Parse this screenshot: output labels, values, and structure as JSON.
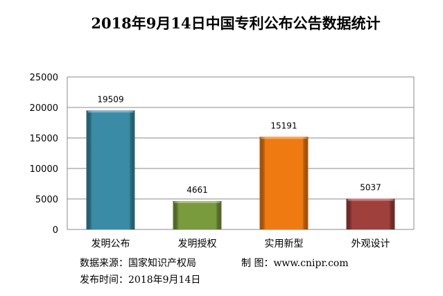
{
  "chart_data": {
    "type": "bar",
    "title": "2018年9月14日中国专利公布公告数据统计",
    "categories": [
      "发明公布",
      "发明授权",
      "实用新型",
      "外观设计"
    ],
    "values": [
      19509,
      4661,
      15191,
      5037
    ],
    "colors": [
      "#3a8ca6",
      "#7a9a3e",
      "#f07a12",
      "#a0403c"
    ],
    "ylim": [
      0,
      25000
    ],
    "yticks": [
      0,
      5000,
      10000,
      15000,
      20000,
      25000
    ],
    "grid": true,
    "xlabel": "",
    "ylabel": ""
  },
  "footer": {
    "source": "数据来源：国家知识产权局",
    "maker": "制 图：www.cnipr.com",
    "date": "发布时间：2018年9月14日"
  }
}
